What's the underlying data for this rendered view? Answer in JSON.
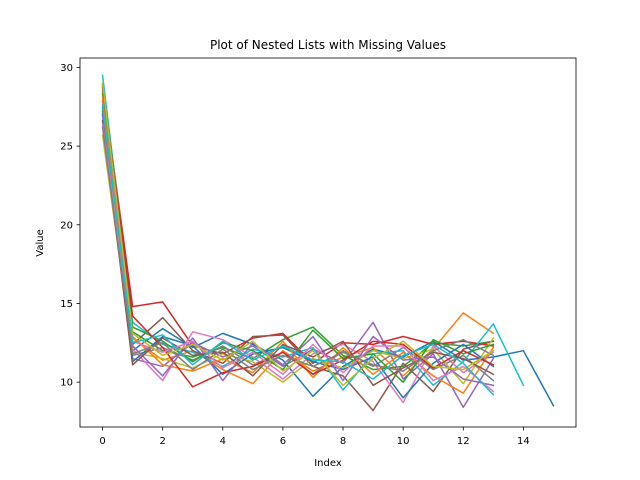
{
  "chart_data": {
    "type": "line",
    "title": "Plot of Nested Lists with Missing Values",
    "xlabel": "Index",
    "ylabel": "Value",
    "xlim": [
      -0.75,
      15.75
    ],
    "ylim": [
      7.15,
      30.6
    ],
    "xticks": [
      0,
      2,
      4,
      6,
      8,
      10,
      12,
      14
    ],
    "yticks": [
      10,
      15,
      20,
      25,
      30
    ],
    "grid": false,
    "legend": "none",
    "colors": [
      "#1f77b4",
      "#ff7f0e",
      "#2ca02c",
      "#d62728",
      "#9467bd",
      "#8c564b",
      "#e377c2",
      "#7f7f7f",
      "#bcbd22",
      "#17becf"
    ],
    "series": [
      {
        "values": [
          27.2,
          12.0,
          13.4,
          12.2,
          13.1,
          12.4,
          11.4,
          9.1,
          11.0,
          12.1,
          11.6,
          12.6,
          11.4,
          11.6,
          12.0,
          8.5
        ]
      },
      {
        "values": [
          28.5,
          12.8,
          11.4,
          12.0,
          10.8,
          9.9,
          12.0,
          10.7,
          11.6,
          12.2,
          10.4,
          12.1,
          14.4,
          13.1
        ]
      },
      {
        "values": [
          28.3,
          13.2,
          12.0,
          11.6,
          12.2,
          11.5,
          12.7,
          13.5,
          11.7,
          10.8,
          11.0,
          12.5,
          12.3,
          12.6
        ]
      },
      {
        "values": [
          28.9,
          14.8,
          15.1,
          12.3,
          11.8,
          12.8,
          13.1,
          11.2,
          12.5,
          12.4,
          12.9,
          12.4,
          12.6,
          12.3
        ]
      },
      {
        "values": [
          27.8,
          11.5,
          11.0,
          12.5,
          11.6,
          12.3,
          11.0,
          12.1,
          11.2,
          13.8,
          10.2,
          11.8,
          8.4,
          11.5
        ]
      },
      {
        "values": [
          27.5,
          12.4,
          14.1,
          12.0,
          11.2,
          12.9,
          13.0,
          11.0,
          10.4,
          8.2,
          11.2,
          9.4,
          12.1,
          12.6
        ]
      },
      {
        "values": [
          27.9,
          12.1,
          10.1,
          13.2,
          12.7,
          11.6,
          10.2,
          11.8,
          12.4,
          11.3,
          8.7,
          12.3,
          10.6,
          11.9
        ]
      },
      {
        "values": [
          27.4,
          11.7,
          12.2,
          11.4,
          12.3,
          11.1,
          11.9,
          10.5,
          12.0,
          11.0,
          12.2,
          10.8,
          11.7,
          10.1
        ]
      },
      {
        "values": [
          25.7,
          11.9,
          11.5,
          10.9,
          11.8,
          11.3,
          10.0,
          11.5,
          10.9,
          12.0,
          11.5,
          12.1,
          9.9,
          12.8
        ]
      },
      {
        "values": [
          29.5,
          13.8,
          12.4,
          11.9,
          11.0,
          12.1,
          11.6,
          12.2,
          9.5,
          11.8,
          12.0,
          9.8,
          11.3,
          13.7,
          9.8
        ]
      },
      {
        "values": [
          27.0,
          11.3,
          12.9,
          12.3,
          10.5,
          11.8,
          12.2,
          11.3,
          10.8,
          11.6,
          9.0,
          11.2,
          12.4,
          11.0
        ]
      },
      {
        "values": [
          28.1,
          12.9,
          11.1,
          10.7,
          11.5,
          10.6,
          12.6,
          10.3,
          12.2,
          10.5,
          11.9,
          10.4,
          9.3,
          12.2
        ]
      },
      {
        "values": [
          28.7,
          13.5,
          12.6,
          11.3,
          12.5,
          12.0,
          10.8,
          13.3,
          11.5,
          11.8,
          10.0,
          12.7,
          11.8,
          12.4
        ]
      },
      {
        "values": [
          28.8,
          14.2,
          12.2,
          9.7,
          10.6,
          11.0,
          11.9,
          10.5,
          11.4,
          12.6,
          12.4,
          10.9,
          12.0,
          11.1
        ]
      },
      {
        "values": [
          26.9,
          12.3,
          10.4,
          12.8,
          10.1,
          12.5,
          11.1,
          12.9,
          10.1,
          12.9,
          11.4,
          11.6,
          10.2,
          9.8
        ]
      },
      {
        "values": [
          26.6,
          11.1,
          12.8,
          11.7,
          11.9,
          10.4,
          12.4,
          11.6,
          12.6,
          9.8,
          10.9,
          11.9,
          11.5,
          10.5
        ]
      },
      {
        "values": [
          26.4,
          12.6,
          11.9,
          12.6,
          10.9,
          11.9,
          10.5,
          12.4,
          10.6,
          12.3,
          12.3,
          10.1,
          11.0,
          9.4
        ]
      },
      {
        "values": [
          26.2,
          11.8,
          12.5,
          10.8,
          12.1,
          10.8,
          11.7,
          11.0,
          11.9,
          11.1,
          10.7,
          12.0,
          12.7,
          11.7
        ]
      },
      {
        "values": [
          29.0,
          13.1,
          11.7,
          12.4,
          11.4,
          12.6,
          10.7,
          12.0,
          9.8,
          11.5,
          12.6,
          11.0,
          10.8,
          12.0
        ]
      },
      {
        "values": [
          27.6,
          12.5,
          13.0,
          11.1,
          12.6,
          11.4,
          12.3,
          11.4,
          11.3,
          10.2,
          11.7,
          12.4,
          11.2,
          9.2
        ]
      }
    ]
  }
}
